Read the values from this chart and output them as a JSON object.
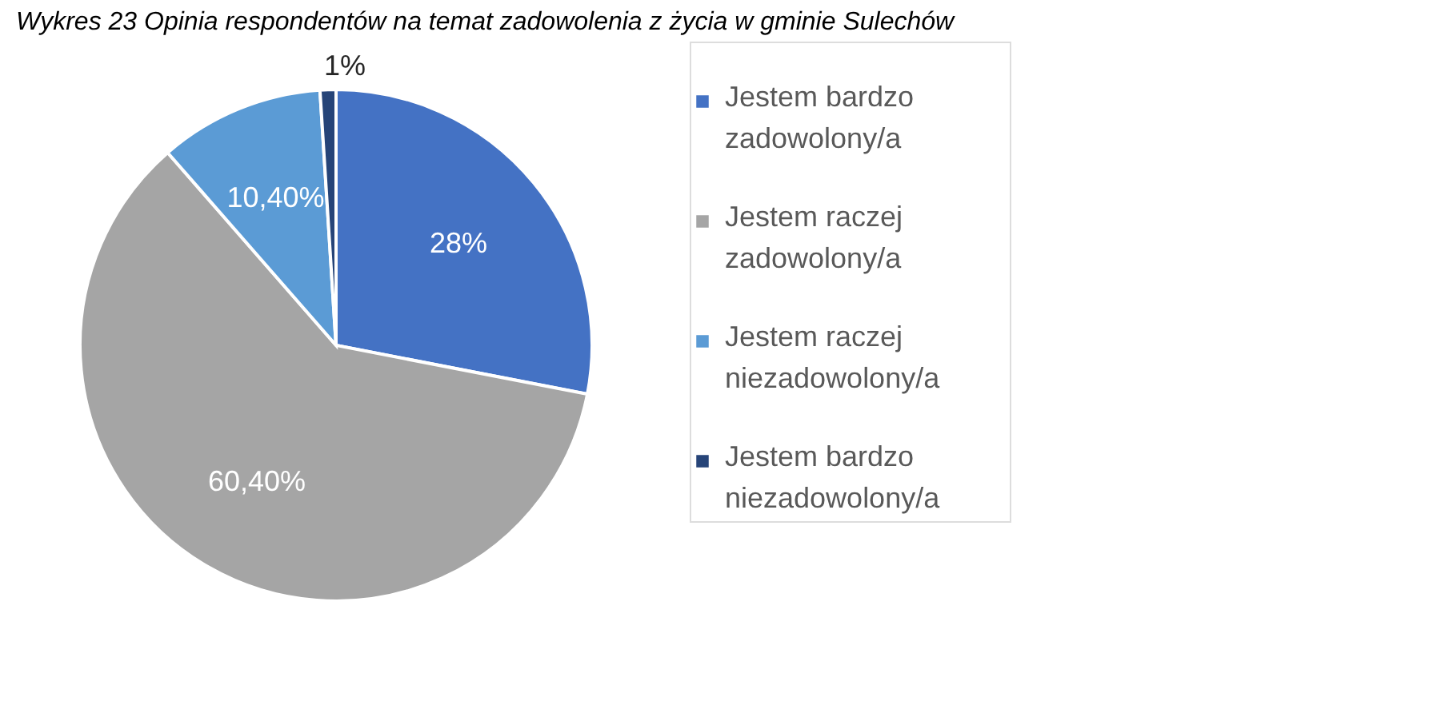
{
  "chart_data": {
    "type": "pie",
    "title": "Wykres 23 Opinia respondentów na temat zadowolenia z życia w gminie Sulechów",
    "categories": [
      "Jestem bardzo zadowolony/a",
      "Jestem raczej zadowolony/a",
      "Jestem raczej niezadowolony/a",
      "Jestem bardzo niezadowolony/a"
    ],
    "values": [
      28,
      60.4,
      10.4,
      1
    ],
    "value_labels": [
      "28%",
      "60,40%",
      "10,40%",
      "1%"
    ],
    "colors": [
      "#4472c4",
      "#a5a5a5",
      "#5b9bd5",
      "#264478"
    ],
    "legend": "right"
  }
}
